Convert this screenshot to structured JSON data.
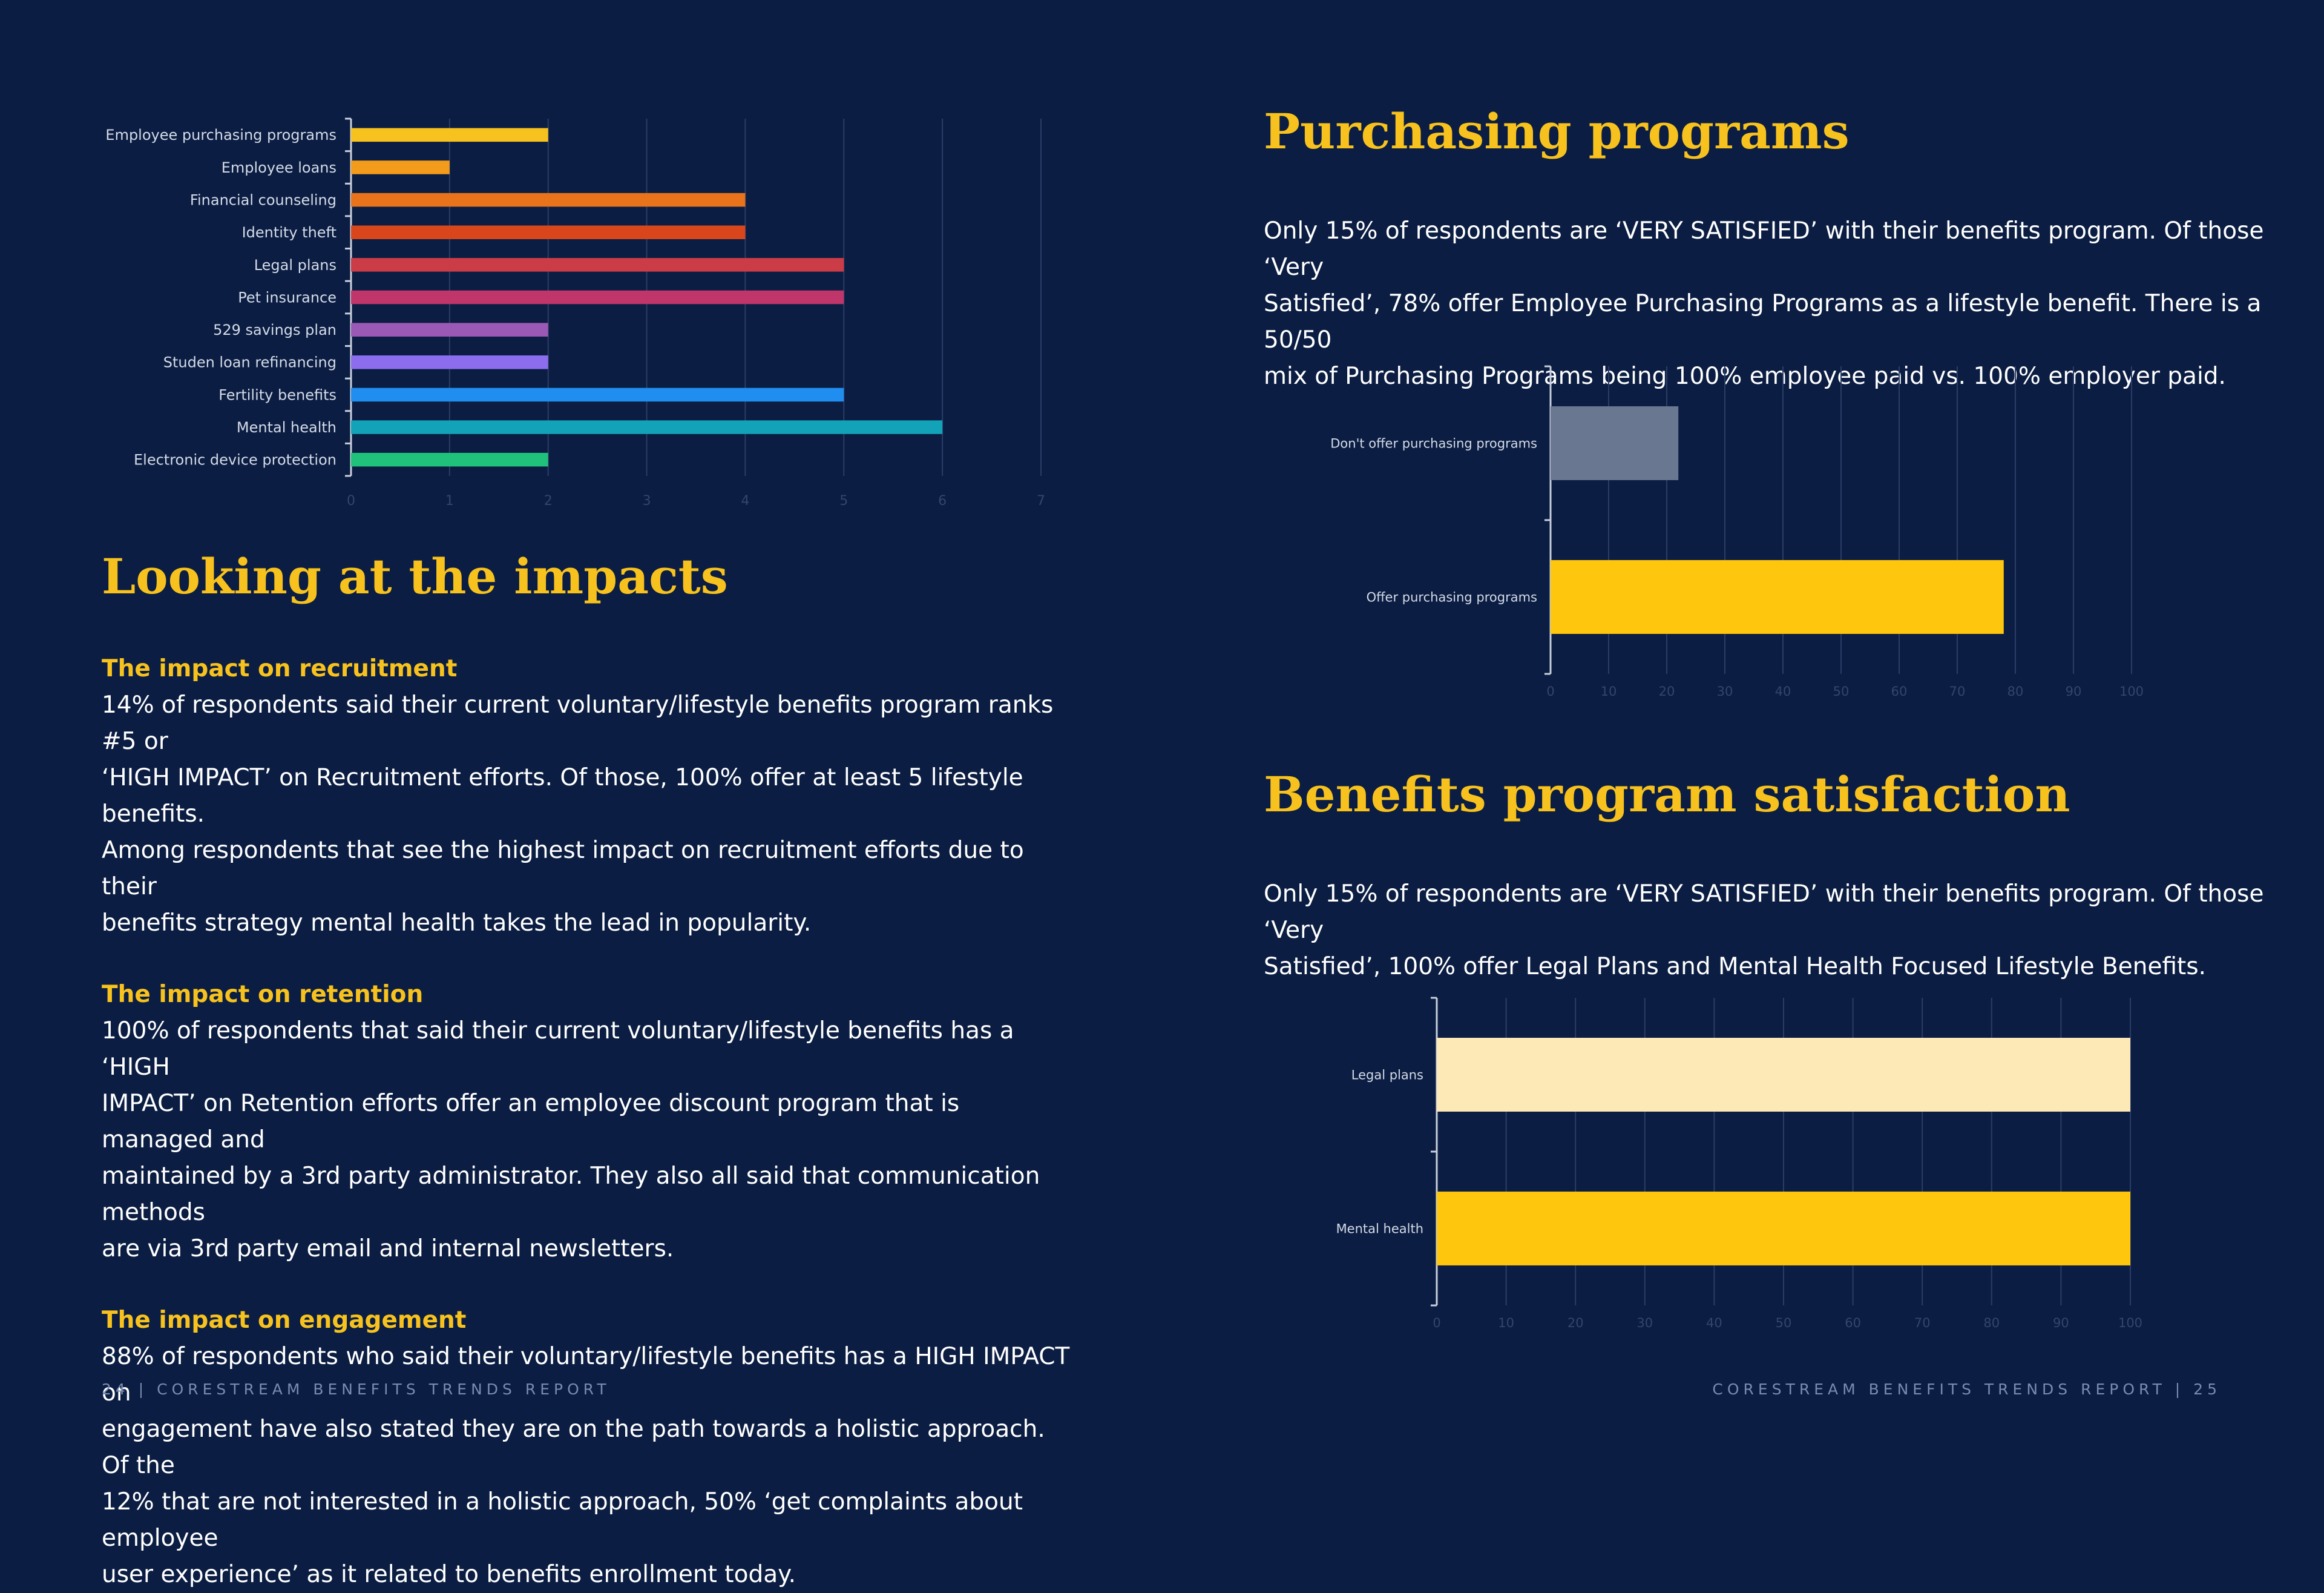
{
  "left": {
    "impacts_heading": "Looking at the impacts",
    "sections": [
      {
        "title": "The impact on recruitment",
        "lines": [
          "14% of respondents said their current voluntary/lifestyle benefits program ranks #5 or",
          "‘HIGH IMPACT’ on Recruitment efforts. Of those, 100% offer at least 5 lifestyle benefits.",
          "Among respondents that see the highest impact on recruitment efforts due to their",
          "benefits strategy mental health takes the lead in popularity."
        ]
      },
      {
        "title": "The impact on retention",
        "lines": [
          "100% of respondents that said their current voluntary/lifestyle benefits has a ‘HIGH",
          "IMPACT’ on Retention efforts offer an employee discount program that is managed and",
          "maintained by a 3rd party administrator. They also all said that communication methods",
          "are via 3rd party email and internal newsletters."
        ]
      },
      {
        "title": "The impact on engagement",
        "lines": [
          "88% of respondents who said their voluntary/lifestyle benefits has a HIGH IMPACT on",
          "engagement have also stated they are on the path towards a holistic approach. Of the",
          "12% that are not interested in a holistic approach, 50% ‘get complaints about employee",
          "user experience’ as it related to benefits enrollment today."
        ]
      }
    ],
    "footer": "24  |  CORESTREAM BENEFITS TRENDS REPORT"
  },
  "right": {
    "purchasing_heading": "Purchasing programs",
    "purchasing_lines": [
      "Only 15% of respondents are ‘VERY SATISFIED’ with their benefits program. Of those ‘Very",
      "Satisfied’, 78% offer Employee Purchasing Programs as a lifestyle benefit.  There is a 50/50",
      "mix of Purchasing Programs being 100% employee paid vs. 100% employer paid."
    ],
    "satisfaction_heading": "Benefits program satisfaction",
    "satisfaction_lines": [
      "Only 15% of respondents are ‘VERY SATISFIED’ with their benefits program. Of those ‘Very",
      "Satisfied’, 100% offer Legal Plans and Mental Health Focused Lifestyle Benefits."
    ],
    "footer": "CORESTREAM BENEFITS TRENDS REPORT  |  25"
  },
  "chart_data": [
    {
      "type": "bar",
      "orientation": "horizontal",
      "categories": [
        "Employee purchasing programs",
        "Employee loans",
        "Financial counseling",
        "Identity theft",
        "Legal plans",
        "Pet insurance",
        "529 savings plan",
        "Studen loan refinancing",
        "Fertility benefits",
        "Mental health",
        "Electronic device protection"
      ],
      "values": [
        2,
        1,
        4,
        4,
        5,
        5,
        2,
        2,
        5,
        6,
        2
      ],
      "colors": [
        "#f7c21e",
        "#f39c1c",
        "#e8731a",
        "#d9461c",
        "#cc3c46",
        "#c0356a",
        "#9b59b6",
        "#8b6ded",
        "#1f8ef0",
        "#12a3b8",
        "#1fc17b"
      ],
      "xlim": [
        0,
        7
      ],
      "xticks": [
        0,
        1,
        2,
        3,
        4,
        5,
        6,
        7
      ],
      "grid": true
    },
    {
      "type": "bar",
      "orientation": "horizontal",
      "categories": [
        "Don't offer purchasing programs",
        "Offer purchasing programs"
      ],
      "values": [
        22,
        78
      ],
      "colors": [
        "#6a7791",
        "#fec60c"
      ],
      "xlim": [
        0,
        100
      ],
      "xticks": [
        0,
        10,
        20,
        30,
        40,
        50,
        60,
        70,
        80,
        90,
        100
      ],
      "grid": true
    },
    {
      "type": "bar",
      "orientation": "horizontal",
      "categories": [
        "Legal plans",
        "Mental health"
      ],
      "values": [
        100,
        100
      ],
      "colors": [
        "#fde9b6",
        "#fec60c"
      ],
      "xlim": [
        0,
        100
      ],
      "xticks": [
        0,
        10,
        20,
        30,
        40,
        50,
        60,
        70,
        80,
        90,
        100
      ],
      "grid": true
    }
  ]
}
